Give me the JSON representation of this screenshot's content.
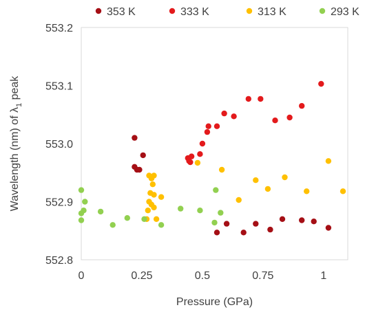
{
  "chart_data": {
    "type": "scatter",
    "title": "",
    "xlabel": "Pressure (GPa)",
    "ylabel_main": "Wavelength (nm) of ",
    "ylabel_symbol": "λ",
    "ylabel_subscript": "1",
    "ylabel_tail": " peak",
    "xlim": [
      0,
      1.1
    ],
    "ylim": [
      552.8,
      553.2
    ],
    "x_ticks": [
      0,
      0.25,
      0.5,
      0.75,
      1
    ],
    "x_tick_labels": [
      "0",
      "0.25",
      "0.5",
      "0.75",
      "1"
    ],
    "y_ticks": [
      552.8,
      552.9,
      553.0,
      553.1,
      553.2
    ],
    "y_tick_labels": [
      "552.8",
      "552.9",
      "553.0",
      "553.1",
      "553.2"
    ],
    "grid": false,
    "legend_position": "top",
    "series": [
      {
        "name": "353 K",
        "color": "#a50f15",
        "points": [
          [
            0.22,
            553.01
          ],
          [
            0.22,
            552.96
          ],
          [
            0.23,
            552.955
          ],
          [
            0.24,
            552.955
          ],
          [
            0.255,
            552.98
          ],
          [
            0.56,
            552.847
          ],
          [
            0.6,
            552.862
          ],
          [
            0.67,
            552.847
          ],
          [
            0.72,
            552.862
          ],
          [
            0.78,
            552.852
          ],
          [
            0.83,
            552.87
          ],
          [
            0.91,
            552.868
          ],
          [
            0.96,
            552.866
          ],
          [
            1.02,
            552.855
          ]
        ]
      },
      {
        "name": "333 K",
        "color": "#e31a1c",
        "points": [
          [
            0.44,
            552.975
          ],
          [
            0.445,
            552.97
          ],
          [
            0.45,
            552.968
          ],
          [
            0.455,
            552.978
          ],
          [
            0.49,
            552.982
          ],
          [
            0.5,
            553.0
          ],
          [
            0.52,
            553.02
          ],
          [
            0.525,
            553.03
          ],
          [
            0.56,
            553.03
          ],
          [
            0.59,
            553.052
          ],
          [
            0.63,
            553.047
          ],
          [
            0.69,
            553.077
          ],
          [
            0.74,
            553.077
          ],
          [
            0.8,
            553.04
          ],
          [
            0.86,
            553.045
          ],
          [
            0.91,
            553.065
          ],
          [
            0.99,
            553.103
          ]
        ]
      },
      {
        "name": "313 K",
        "color": "#ffc000",
        "points": [
          [
            0.27,
            552.87
          ],
          [
            0.275,
            552.885
          ],
          [
            0.28,
            552.945
          ],
          [
            0.28,
            552.9
          ],
          [
            0.285,
            552.915
          ],
          [
            0.29,
            552.94
          ],
          [
            0.29,
            552.895
          ],
          [
            0.295,
            552.93
          ],
          [
            0.3,
            552.945
          ],
          [
            0.3,
            552.912
          ],
          [
            0.3,
            552.89
          ],
          [
            0.31,
            552.87
          ],
          [
            0.33,
            552.908
          ],
          [
            0.48,
            552.967
          ],
          [
            0.58,
            552.955
          ],
          [
            0.65,
            552.903
          ],
          [
            0.72,
            552.937
          ],
          [
            0.77,
            552.922
          ],
          [
            0.84,
            552.942
          ],
          [
            0.93,
            552.918
          ],
          [
            1.02,
            552.97
          ],
          [
            1.08,
            552.918
          ]
        ]
      },
      {
        "name": "293 K",
        "color": "#92d050",
        "points": [
          [
            0.0,
            552.92
          ],
          [
            0.0,
            552.88
          ],
          [
            0.0,
            552.868
          ],
          [
            0.01,
            552.885
          ],
          [
            0.015,
            552.9
          ],
          [
            0.08,
            552.883
          ],
          [
            0.13,
            552.86
          ],
          [
            0.19,
            552.872
          ],
          [
            0.26,
            552.87
          ],
          [
            0.33,
            552.86
          ],
          [
            0.41,
            552.888
          ],
          [
            0.49,
            552.885
          ],
          [
            0.55,
            552.864
          ],
          [
            0.555,
            552.92
          ],
          [
            0.575,
            552.881
          ]
        ]
      }
    ]
  }
}
